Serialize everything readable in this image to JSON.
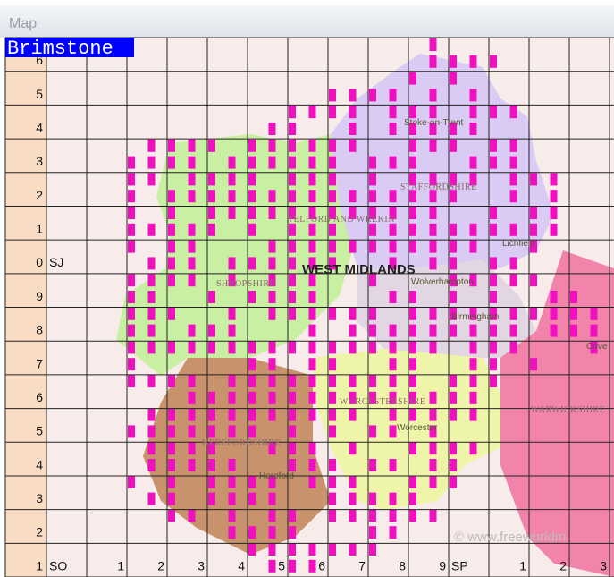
{
  "window": {
    "title": "Map"
  },
  "species": "Brimstone",
  "grid": {
    "row_labels": [
      "6",
      "5",
      "4",
      "3",
      "2",
      "1",
      {
        "number": "0",
        "letters": "SJ"
      },
      "9",
      "8",
      "7",
      "6",
      "5",
      "4",
      "3",
      "2",
      "1"
    ],
    "column_labels": [
      "SO",
      "1",
      "2",
      "3",
      "4",
      "5",
      "6",
      "7",
      "8",
      "9",
      "SP",
      "1",
      "2",
      "3"
    ]
  },
  "map_labels": {
    "stoke": "Stoke-on-Trent",
    "staffordshire": "STAFFORDSHIRE",
    "telford": "TELFORD AND WREKIN",
    "lichfield": "Lichfield",
    "west_midlands": "WEST MIDLANDS",
    "shropshire": "SHROPSHIRE",
    "wolverhampton": "Wolverhampton",
    "birmingham": "Birmingham",
    "coventry": "Cove",
    "warwickshire": "WARWICKSHIRE",
    "worcestershire": "WORCESTERSHIRE",
    "worcester": "Worcester",
    "herefordshire": "HEREFORDSHIRE",
    "hereford": "Hereford",
    "credit": "© www.freeworldm"
  }
}
